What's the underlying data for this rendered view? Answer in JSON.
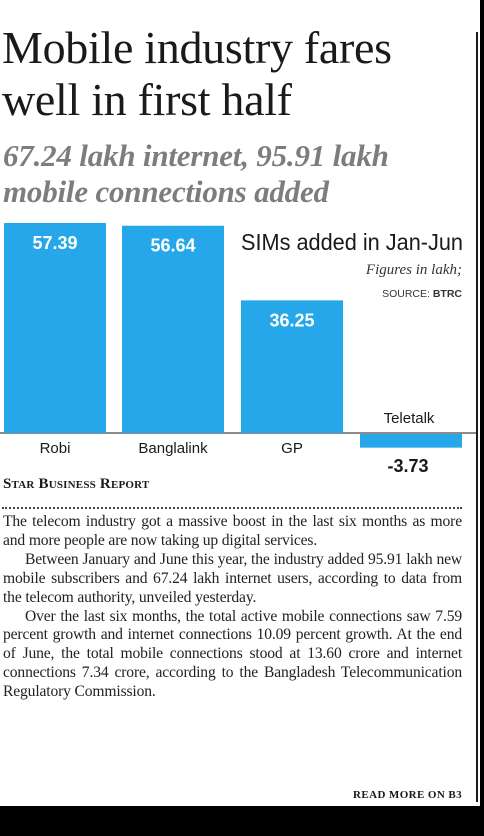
{
  "headline": "Mobile industry fares well in first half",
  "subheadline": "67.24 lakh internet, 95.91 lakh mobile connections added",
  "chart_data": {
    "type": "bar",
    "title": "SIMs added in Jan-Jun",
    "subtitle": "Figures in lakh;",
    "source_label": "SOURCE:",
    "source_name": "BTRC",
    "categories": [
      "Robi",
      "Banglalink",
      "GP",
      "Teletalk"
    ],
    "values": [
      57.39,
      56.64,
      36.25,
      -3.73
    ],
    "value_labels": [
      "57.39",
      "56.64",
      "36.25",
      "-3.73"
    ],
    "bar_color": "#25a7e9",
    "ylim": [
      -3.73,
      57.39
    ]
  },
  "byline": "Star Business Report",
  "article": {
    "paragraphs": [
      "The telecom industry got a massive boost in the last six months as more and more people are now taking up digital services.",
      "Between January and June this year, the industry added 95.91 lakh new mobile subscribers and 67.24 lakh internet users, according to data from the telecom authority, unveiled yesterday.",
      "Over the last six months, the total active mobile connections saw 7.59 percent growth and internet connections 10.09 percent growth. At the end of June, the total mobile connections stood at 13.60 crore and internet connections 7.34 crore, according to the Bangladesh Telecommunication Regulatory Commission."
    ]
  },
  "read_more": "READ MORE ON B3"
}
